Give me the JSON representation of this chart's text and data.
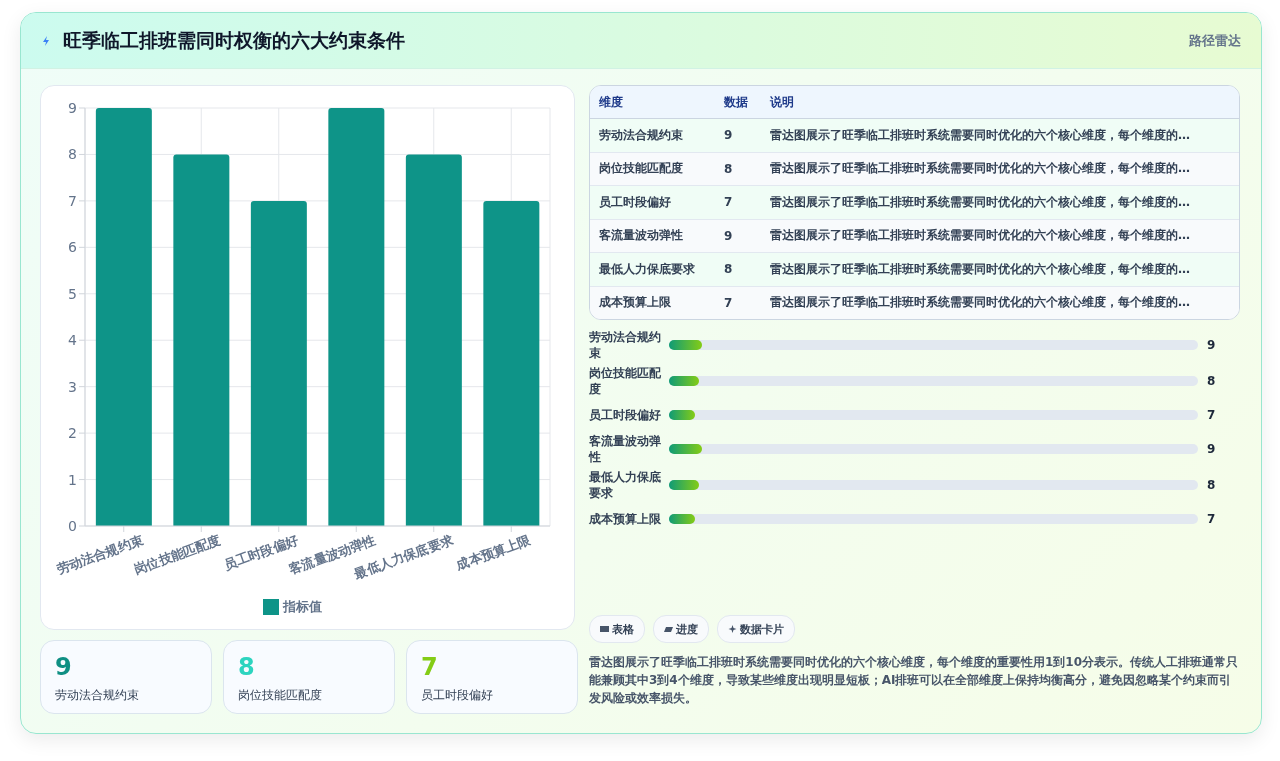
{
  "chart_data": [
    {
      "type": "bar",
      "title": "旺季临工排班需同时权衡的六大约束条件",
      "categories": [
        "劳动法合规约束",
        "岗位技能匹配度",
        "员工时段偏好",
        "客流量波动弹性",
        "最低人力保底要求",
        "成本预算上限"
      ],
      "series": [
        {
          "name": "指标值",
          "color": "#0e9488",
          "values": [
            9,
            8,
            7,
            9,
            8,
            7
          ]
        }
      ],
      "ylim": [
        0,
        9
      ],
      "yticks": [
        0,
        1,
        2,
        3,
        4,
        5,
        6,
        7,
        8,
        9
      ],
      "grid": true,
      "legend": "bottom"
    },
    {
      "type": "other",
      "subtitle": "路径雷达",
      "categories": [
        "劳动法合规约束",
        "岗位技能匹配度",
        "员工时段偏好",
        "客流量波动弹性",
        "最低人力保底要求",
        "成本预算上限"
      ],
      "values": [
        9,
        8,
        7,
        9,
        8,
        7
      ],
      "data_labels": true,
      "annotations": [
        "维度",
        "数据",
        "说明",
        "雷达图展示了旺季临工排班时系统需要同时优化的六个核心维度，每个维度的…"
      ]
    },
    {
      "type": "other",
      "categories": [
        "劳动法合规约束",
        "岗位技能匹配度",
        "员工时段偏好",
        "客流量波动弹性",
        "最低人力保底要求",
        "成本预算上限"
      ],
      "values": [
        9,
        8,
        7,
        9,
        8,
        7
      ],
      "data_labels": true,
      "annotations": [
        "表格",
        "进度",
        "数据卡片",
        "雷达图展示了旺季临工排班时系统需要同时优化的六个核心维度，每个维度的重要性用1到10分表示。传统人工排班通常只能兼顾其中3到4个维度，导致某些维度出现明显短板；AI排班可以在全部维度上保持均衡高分，避免因忽略某个约束而引发风险或效率损失。"
      ]
    },
    {
      "type": "other",
      "categories": [
        "劳动法合规约束",
        "岗位技能匹配度",
        "员工时段偏好"
      ],
      "values": [
        9,
        8,
        7
      ],
      "data_labels": true
    }
  ]
}
